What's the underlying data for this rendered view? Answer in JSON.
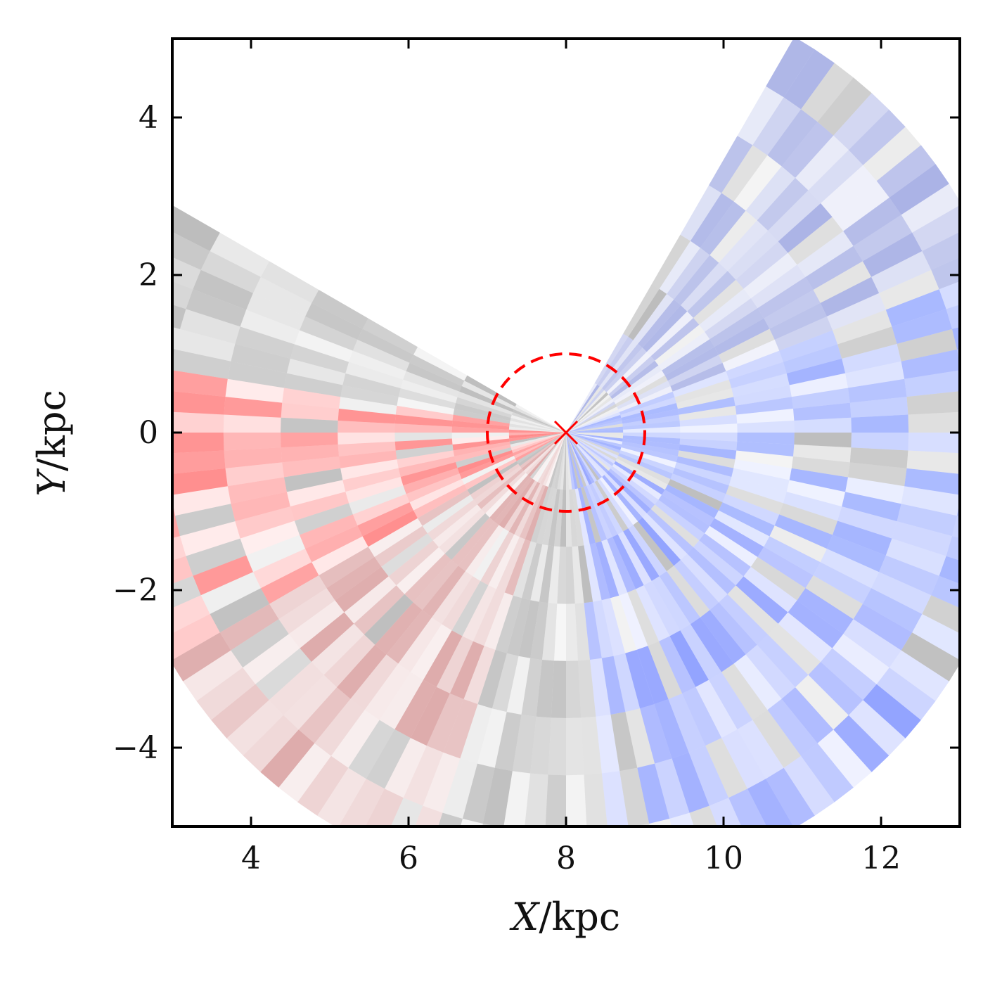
{
  "chart_data": {
    "type": "heatmap",
    "title": "",
    "xlabel": {
      "var": "X",
      "unit": "/kpc"
    },
    "ylabel": {
      "var": "Y",
      "unit": "/kpc"
    },
    "xlim": [
      3,
      13
    ],
    "ylim": [
      -5,
      5
    ],
    "xticks": [
      4,
      6,
      8,
      10,
      12
    ],
    "yticks": [
      -4,
      -2,
      0,
      2,
      4
    ],
    "grid": false,
    "colormap": {
      "negative": "#ff2020",
      "middle": "#808080",
      "positive": "#1f3cff"
    },
    "sun_marker": {
      "x": 8.0,
      "y": 0.0,
      "symbol": "x",
      "color": "#ff0000"
    },
    "dashed_circle": {
      "center": [
        8.0,
        0.0
      ],
      "radius": 1.0,
      "color": "#ff0000"
    },
    "coverage": {
      "description_free": true,
      "angle_range_deg": [
        -210,
        60
      ],
      "r_max": 5.8
    },
    "sectors": [
      {
        "angle_range_deg": [
          -190,
          -150
        ],
        "color": "#ff2020"
      },
      {
        "angle_range_deg": [
          -150,
          -110
        ],
        "color": "#c06060"
      },
      {
        "angle_range_deg": [
          -110,
          -85
        ],
        "color": "#909090"
      },
      {
        "angle_range_deg": [
          -85,
          -30
        ],
        "color": "#3050ff"
      },
      {
        "angle_range_deg": [
          -30,
          20
        ],
        "color": "#5070ff"
      },
      {
        "angle_range_deg": [
          20,
          60
        ],
        "color": "#6070d0"
      }
    ]
  }
}
